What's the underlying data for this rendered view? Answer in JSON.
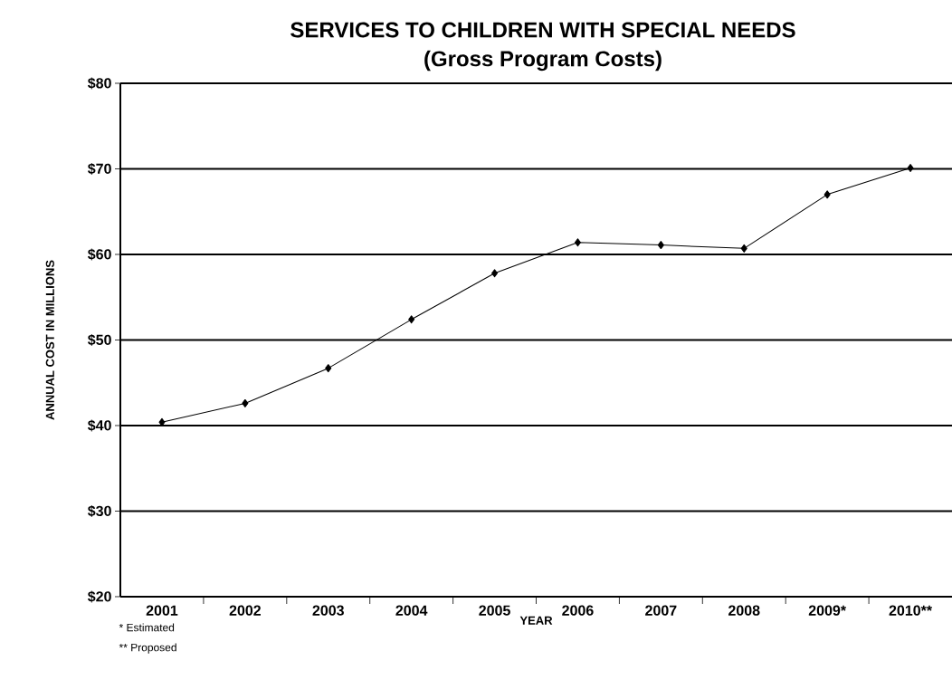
{
  "chart_data": {
    "type": "line",
    "title": "SERVICES TO CHILDREN WITH SPECIAL NEEDS",
    "subtitle": "(Gross Program Costs)",
    "xlabel": "YEAR",
    "ylabel": "ANNUAL COST IN MILLIONS",
    "categories": [
      "2001",
      "2002",
      "2003",
      "2004",
      "2005",
      "2006",
      "2007",
      "2008",
      "2009*",
      "2010**"
    ],
    "series": [
      {
        "color": "#000000",
        "values": [
          40.4,
          42.6,
          46.7,
          52.4,
          57.8,
          61.4,
          61.1,
          60.7,
          67.0,
          70.1
        ]
      }
    ],
    "ylim": [
      20,
      80
    ],
    "yticks": [
      {
        "value": 20,
        "label": "$20"
      },
      {
        "value": 30,
        "label": "$30"
      },
      {
        "value": 40,
        "label": "$40"
      },
      {
        "value": 50,
        "label": "$50"
      },
      {
        "value": 60,
        "label": "$60"
      },
      {
        "value": 70,
        "label": "$70"
      },
      {
        "value": 80,
        "label": "$80"
      }
    ],
    "grid": "y",
    "marker": "diamond",
    "line_style": "solid",
    "annotations": [
      "* Estimated",
      "** Proposed"
    ]
  }
}
